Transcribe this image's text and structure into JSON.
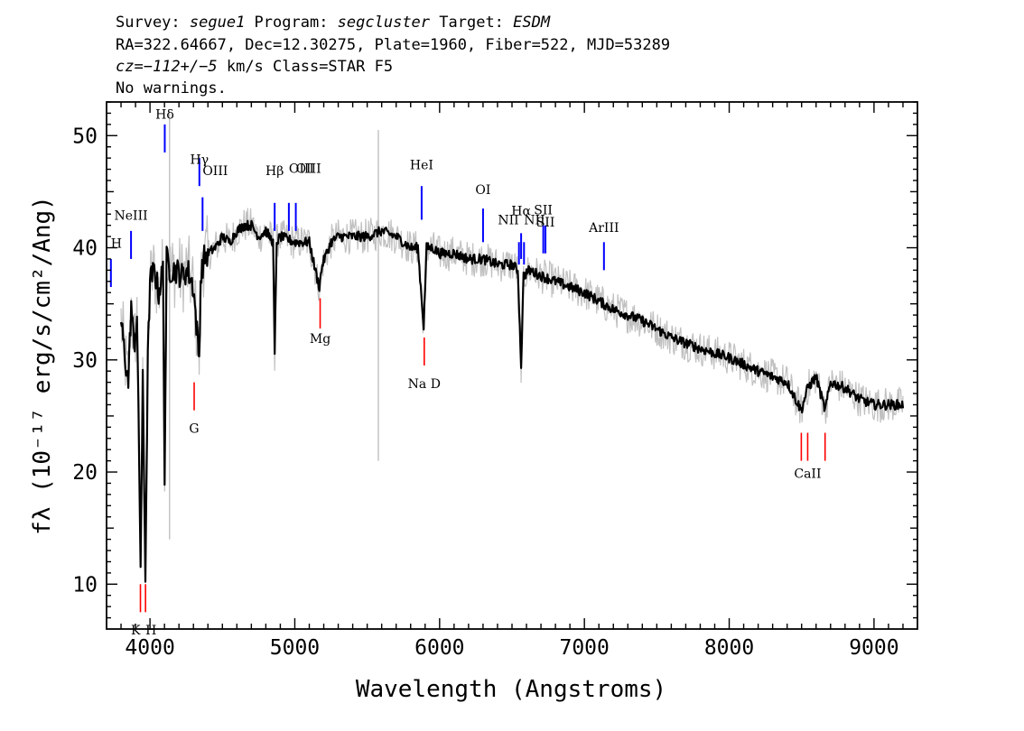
{
  "header": {
    "line1": {
      "survey_key": "Survey: ",
      "survey_val": "segue1",
      "program_key": " Program: ",
      "program_val": "segcluster",
      "target_key": " Target: ",
      "target_val": "ESDM"
    },
    "line2": "RA=322.64667, Dec=12.30275, Plate=1960, Fiber=522, MJD=53289",
    "line3": {
      "cz_key": "cz",
      "cz_val": "=−112+/−5",
      "rest": " km/s Class=STAR F5"
    },
    "line4": "No warnings."
  },
  "chart_data": {
    "type": "line",
    "xlabel": "Wavelength (Angstroms)",
    "ylabel": "fλ (10⁻¹⁷ erg/s/cm²/Ang)",
    "xlim": [
      3700,
      9300
    ],
    "ylim": [
      6,
      53
    ],
    "x_ticks": [
      4000,
      5000,
      6000,
      7000,
      8000,
      9000
    ],
    "y_ticks": [
      10,
      20,
      30,
      40,
      50
    ],
    "grid": false,
    "colors": {
      "flux": "#000000",
      "error": "#c0c0c0",
      "emission_lines": "#0000ff",
      "absorption_lines": "#ff0000"
    },
    "series": [
      {
        "name": "flux",
        "x": [
          3800,
          3830,
          3850,
          3870,
          3890,
          3910,
          3935,
          3950,
          3968,
          3985,
          4000,
          4030,
          4060,
          4090,
          4101,
          4115,
          4140,
          4180,
          4220,
          4260,
          4300,
          4340,
          4350,
          4370,
          4400,
          4450,
          4500,
          4550,
          4600,
          4650,
          4700,
          4750,
          4800,
          4850,
          4861,
          4875,
          4900,
          5000,
          5100,
          5150,
          5170,
          5190,
          5250,
          5300,
          5400,
          5500,
          5600,
          5700,
          5800,
          5850,
          5890,
          5910,
          5950,
          6000,
          6100,
          6200,
          6300,
          6400,
          6500,
          6540,
          6563,
          6580,
          6620,
          6700,
          6800,
          7000,
          7200,
          7400,
          7600,
          7800,
          8000,
          8200,
          8400,
          8498,
          8542,
          8600,
          8662,
          8700,
          8800,
          8900,
          9000,
          9100,
          9200
        ],
        "y": [
          33.5,
          30,
          28,
          35,
          31,
          34,
          12,
          28,
          11,
          30,
          37,
          38,
          36,
          38,
          20,
          39,
          38,
          38,
          37.5,
          38,
          36.5,
          30,
          37,
          39,
          39.5,
          40,
          41,
          40.5,
          41.5,
          42,
          42,
          41,
          41.5,
          40.5,
          30.5,
          40.5,
          41,
          40.5,
          40.5,
          37.5,
          36.5,
          38.5,
          40.5,
          41,
          41,
          41,
          41.5,
          41,
          40,
          40,
          33,
          40,
          40,
          39.5,
          39.5,
          39,
          39,
          38.5,
          38.5,
          38,
          29.5,
          37.5,
          38,
          37.5,
          37,
          36,
          34.5,
          33.5,
          32,
          31,
          30.2,
          29,
          28,
          25.5,
          27.5,
          28.5,
          25.5,
          28,
          27.5,
          26.5,
          26,
          26,
          26
        ]
      }
    ],
    "emission_lines": [
      {
        "label": "H",
        "wave": 3730
      },
      {
        "label": "NeIII",
        "wave": 3869
      },
      {
        "label": "Hδ",
        "wave": 4102
      },
      {
        "label": "Hγ",
        "wave": 4341
      },
      {
        "label": "OIII",
        "wave": 4363
      },
      {
        "label": "Hβ",
        "wave": 4861
      },
      {
        "label": "OIII",
        "wave": 4959
      },
      {
        "label": "OIII",
        "wave": 5007
      },
      {
        "label": "HeI",
        "wave": 5876
      },
      {
        "label": "OI",
        "wave": 6300
      },
      {
        "label": "NII",
        "wave": 6548
      },
      {
        "label": "Hα",
        "wave": 6563
      },
      {
        "label": "NII",
        "wave": 6583
      },
      {
        "label": "SII",
        "wave": 6716
      },
      {
        "label": "SII",
        "wave": 6731
      },
      {
        "label": "ArIII",
        "wave": 7135
      }
    ],
    "absorption_lines": [
      {
        "label": "K",
        "wave": 3934
      },
      {
        "label": "H",
        "wave": 3969
      },
      {
        "label": "G",
        "wave": 4305
      },
      {
        "label": "Mg",
        "wave": 5175
      },
      {
        "label": "Na D",
        "wave": 5894
      },
      {
        "label": "CaII",
        "wave": 8498
      },
      {
        "label": "CaII",
        "wave": 8542
      },
      {
        "label": "CaII",
        "wave": 8662
      }
    ]
  }
}
